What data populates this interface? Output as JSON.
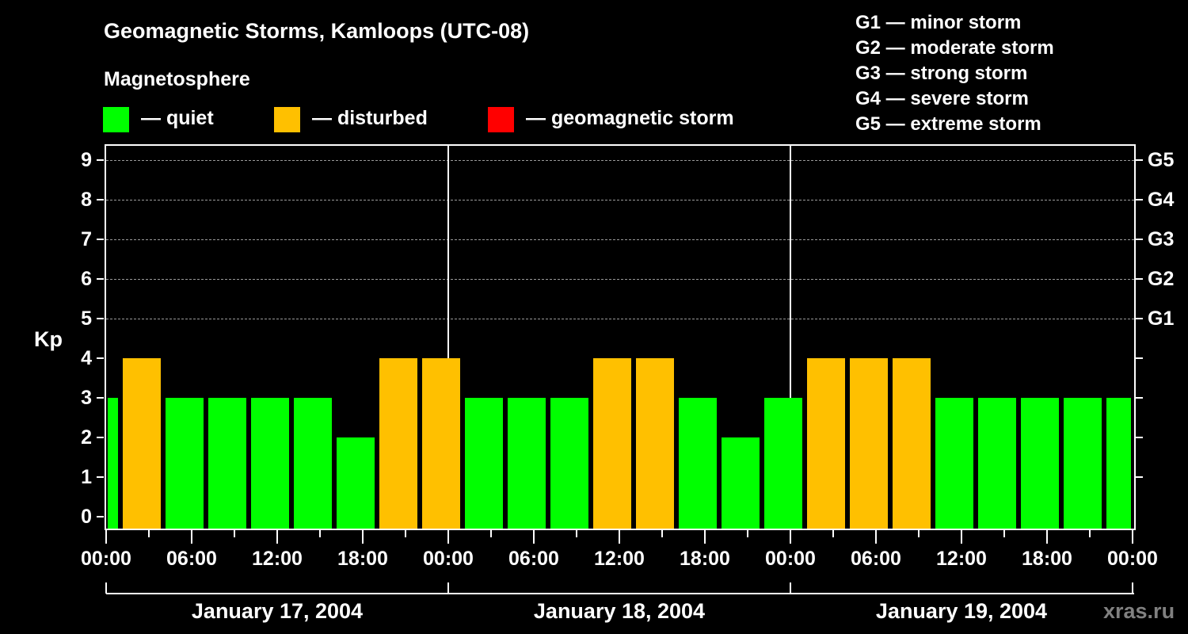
{
  "header": {
    "title": "Geomagnetic Storms, Kamloops (UTC-08)",
    "subtitle": "Magnetosphere"
  },
  "legend": [
    {
      "label": "— quiet",
      "color": "#00ff00"
    },
    {
      "label": "— disturbed",
      "color": "#ffc000"
    },
    {
      "label": "— geomagnetic storm",
      "color": "#ff0000"
    }
  ],
  "g_legend": [
    "G1 — minor storm",
    "G2 — moderate storm",
    "G3 — strong storm",
    "G4 — severe storm",
    "G5 — extreme storm"
  ],
  "watermark": "xras.ru",
  "chart_data": {
    "type": "bar",
    "title": "Geomagnetic Storms, Kamloops (UTC-08)",
    "subtitle": "Magnetosphere",
    "ylabel": "Kp",
    "ylim": [
      0,
      9
    ],
    "y_ticks": [
      "0",
      "1",
      "2",
      "3",
      "4",
      "5",
      "6",
      "7",
      "8",
      "9"
    ],
    "right_axis_labels": [
      {
        "value": 5,
        "label": "G1"
      },
      {
        "value": 6,
        "label": "G2"
      },
      {
        "value": 7,
        "label": "G3"
      },
      {
        "value": 8,
        "label": "G4"
      },
      {
        "value": 9,
        "label": "G5"
      }
    ],
    "grid": "dashed horizontal at Kp 5-9",
    "x_tick_labels": [
      "00:00",
      "06:00",
      "12:00",
      "18:00",
      "00:00",
      "06:00",
      "12:00",
      "18:00",
      "00:00",
      "06:00",
      "12:00",
      "18:00",
      "00:00"
    ],
    "days": [
      "January 17, 2004",
      "January 18, 2004",
      "January 19, 2004"
    ],
    "bin_hours": 3,
    "bars": [
      {
        "start": "Jan 17 00:00",
        "end": "Jan 17 01:00",
        "kp": 3,
        "status": "quiet"
      },
      {
        "start": "Jan 17 01:00",
        "end": "Jan 17 04:00",
        "kp": 4,
        "status": "disturbed"
      },
      {
        "start": "Jan 17 04:00",
        "end": "Jan 17 07:00",
        "kp": 3,
        "status": "quiet"
      },
      {
        "start": "Jan 17 07:00",
        "end": "Jan 17 10:00",
        "kp": 3,
        "status": "quiet"
      },
      {
        "start": "Jan 17 10:00",
        "end": "Jan 17 13:00",
        "kp": 3,
        "status": "quiet"
      },
      {
        "start": "Jan 17 13:00",
        "end": "Jan 17 16:00",
        "kp": 3,
        "status": "quiet"
      },
      {
        "start": "Jan 17 16:00",
        "end": "Jan 17 19:00",
        "kp": 2,
        "status": "quiet"
      },
      {
        "start": "Jan 17 19:00",
        "end": "Jan 17 22:00",
        "kp": 4,
        "status": "disturbed"
      },
      {
        "start": "Jan 17 22:00",
        "end": "Jan 18 01:00",
        "kp": 4,
        "status": "disturbed"
      },
      {
        "start": "Jan 18 01:00",
        "end": "Jan 18 04:00",
        "kp": 3,
        "status": "quiet"
      },
      {
        "start": "Jan 18 04:00",
        "end": "Jan 18 07:00",
        "kp": 3,
        "status": "quiet"
      },
      {
        "start": "Jan 18 07:00",
        "end": "Jan 18 10:00",
        "kp": 3,
        "status": "quiet"
      },
      {
        "start": "Jan 18 10:00",
        "end": "Jan 18 13:00",
        "kp": 4,
        "status": "disturbed"
      },
      {
        "start": "Jan 18 13:00",
        "end": "Jan 18 16:00",
        "kp": 4,
        "status": "disturbed"
      },
      {
        "start": "Jan 18 16:00",
        "end": "Jan 18 19:00",
        "kp": 3,
        "status": "quiet"
      },
      {
        "start": "Jan 18 19:00",
        "end": "Jan 18 22:00",
        "kp": 2,
        "status": "quiet"
      },
      {
        "start": "Jan 18 22:00",
        "end": "Jan 19 01:00",
        "kp": 3,
        "status": "quiet"
      },
      {
        "start": "Jan 19 01:00",
        "end": "Jan 19 04:00",
        "kp": 4,
        "status": "disturbed"
      },
      {
        "start": "Jan 19 04:00",
        "end": "Jan 19 07:00",
        "kp": 4,
        "status": "disturbed"
      },
      {
        "start": "Jan 19 07:00",
        "end": "Jan 19 10:00",
        "kp": 4,
        "status": "disturbed"
      },
      {
        "start": "Jan 19 10:00",
        "end": "Jan 19 13:00",
        "kp": 3,
        "status": "quiet"
      },
      {
        "start": "Jan 19 13:00",
        "end": "Jan 19 16:00",
        "kp": 3,
        "status": "quiet"
      },
      {
        "start": "Jan 19 16:00",
        "end": "Jan 19 19:00",
        "kp": 3,
        "status": "quiet"
      },
      {
        "start": "Jan 19 19:00",
        "end": "Jan 19 22:00",
        "kp": 3,
        "status": "quiet"
      },
      {
        "start": "Jan 19 22:00",
        "end": "Jan 20 00:00",
        "kp": 3,
        "status": "quiet"
      }
    ],
    "colors": {
      "quiet": "#00ff00",
      "disturbed": "#ffc000",
      "storm": "#ff0000"
    }
  }
}
